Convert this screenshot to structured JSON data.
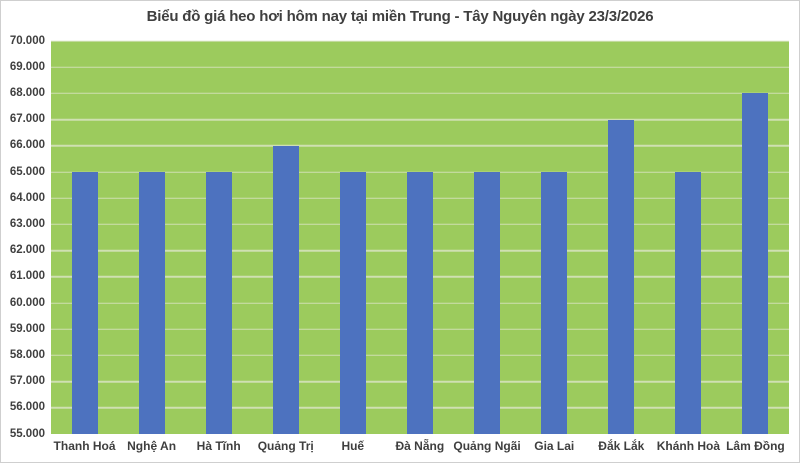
{
  "chart_data": {
    "type": "bar",
    "title": "Biểu đồ giá heo hơi hôm nay tại miền Trung - Tây Nguyên ngày 23/3/2026",
    "categories": [
      "Thanh Hoá",
      "Nghệ An",
      "Hà Tĩnh",
      "Quảng Trị",
      "Huế",
      "Đà Nẵng",
      "Quảng Ngãi",
      "Gia Lai",
      "Đắk Lắk",
      "Khánh Hoà",
      "Lâm Đồng"
    ],
    "values": [
      65000,
      65000,
      65000,
      66000,
      65000,
      65000,
      65000,
      65000,
      67000,
      65000,
      68000
    ],
    "xlabel": "",
    "ylabel": "",
    "ylim": [
      55000,
      70000
    ],
    "y_tick_step": 1000,
    "y_tick_labels": [
      "55.000",
      "56.000",
      "57.000",
      "58.000",
      "59.000",
      "60.000",
      "61.000",
      "62.000",
      "63.000",
      "64.000",
      "65.000",
      "66.000",
      "67.000",
      "68.000",
      "69.000",
      "70.000"
    ],
    "grid": "horizontal",
    "legend": "none",
    "colors": {
      "bar": "#4D72BF",
      "plot_background": "#9CCB5D",
      "gridline": "#CFE0B2",
      "text": "#3F3F3F",
      "border": "#CFCFCF"
    }
  }
}
